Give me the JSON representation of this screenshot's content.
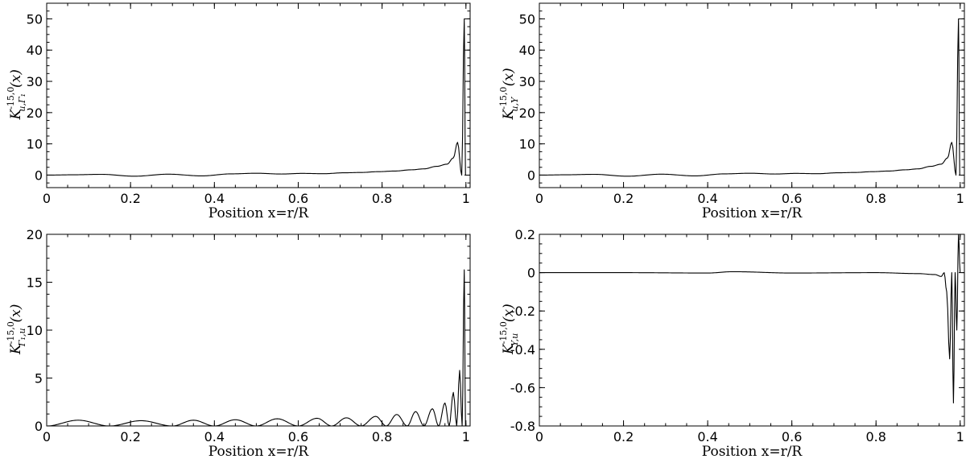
{
  "chart_data": [
    {
      "type": "line",
      "xlabel": "Position x=r/R",
      "ylabel": {
        "base": "K",
        "sup": "-15,0",
        "sub": "u,Γ₁",
        "arg": "(x)"
      },
      "xlim": [
        0,
        1.01
      ],
      "ylim": [
        -4,
        55
      ],
      "xticks": [
        0,
        0.2,
        0.4,
        0.6,
        0.8,
        1
      ],
      "xtick_labels": [
        "0",
        "0.2",
        "0.4",
        "0.6",
        "0.8",
        "1"
      ],
      "yticks": [
        0,
        10,
        20,
        30,
        40,
        50
      ],
      "ytick_labels": [
        "0",
        "10",
        "20",
        "30",
        "40",
        "50"
      ],
      "grid": false,
      "series": [
        {
          "x": [
            0.0,
            0.06,
            0.13,
            0.21,
            0.29,
            0.37,
            0.44,
            0.5,
            0.56,
            0.61,
            0.66,
            0.71,
            0.75,
            0.79,
            0.83,
            0.87,
            0.9,
            0.93,
            0.955,
            0.97,
            0.98,
            0.99,
            0.996,
            0.999
          ],
          "y": [
            0.0,
            0.1,
            0.25,
            -0.35,
            0.3,
            -0.25,
            0.4,
            0.6,
            0.35,
            0.55,
            0.45,
            0.75,
            0.85,
            1.1,
            1.3,
            1.7,
            2.0,
            2.8,
            3.5,
            5.5,
            10.5,
            0.0,
            50.0,
            0.0
          ]
        }
      ]
    },
    {
      "type": "line",
      "xlabel": "Position x=r/R",
      "ylabel": {
        "base": "K",
        "sup": "-15,0",
        "sub": "u,Y",
        "arg": "(x)"
      },
      "xlim": [
        0,
        1.01
      ],
      "ylim": [
        -4,
        55
      ],
      "xticks": [
        0,
        0.2,
        0.4,
        0.6,
        0.8,
        1
      ],
      "xtick_labels": [
        "0",
        "0.2",
        "0.4",
        "0.6",
        "0.8",
        "1"
      ],
      "yticks": [
        0,
        10,
        20,
        30,
        40,
        50
      ],
      "ytick_labels": [
        "0",
        "10",
        "20",
        "30",
        "40",
        "50"
      ],
      "grid": false,
      "series": [
        {
          "x": [
            0.0,
            0.06,
            0.13,
            0.21,
            0.29,
            0.37,
            0.44,
            0.5,
            0.56,
            0.61,
            0.66,
            0.71,
            0.75,
            0.79,
            0.83,
            0.87,
            0.9,
            0.93,
            0.955,
            0.97,
            0.98,
            0.99,
            0.996,
            0.999
          ],
          "y": [
            0.0,
            0.1,
            0.25,
            -0.35,
            0.3,
            -0.25,
            0.4,
            0.6,
            0.35,
            0.55,
            0.45,
            0.75,
            0.85,
            1.1,
            1.3,
            1.7,
            2.0,
            2.8,
            3.5,
            5.5,
            10.5,
            0.0,
            50.0,
            0.0
          ]
        }
      ]
    },
    {
      "type": "line",
      "xlabel": "Position x=r/R",
      "ylabel": {
        "base": "K",
        "sup": "-15,0",
        "sub": "Γ₁,u",
        "arg": "(x)"
      },
      "xlim": [
        0,
        1.01
      ],
      "ylim": [
        0,
        20
      ],
      "xticks": [
        0,
        0.2,
        0.4,
        0.6,
        0.8,
        1
      ],
      "xtick_labels": [
        "0",
        "0.2",
        "0.4",
        "0.6",
        "0.8",
        "1"
      ],
      "yticks": [
        0,
        5,
        10,
        15,
        20
      ],
      "ytick_labels": [
        "0",
        "5",
        "10",
        "15",
        "20"
      ],
      "grid": false,
      "series": [
        {
          "x": [
            0.0,
            0.075,
            0.15,
            0.225,
            0.3,
            0.35,
            0.4,
            0.45,
            0.5,
            0.55,
            0.6,
            0.645,
            0.68,
            0.715,
            0.75,
            0.785,
            0.81,
            0.835,
            0.86,
            0.88,
            0.9,
            0.92,
            0.935,
            0.95,
            0.96,
            0.97,
            0.978,
            0.985,
            0.991,
            0.996,
            0.999
          ],
          "y": [
            0.0,
            0.6,
            0.0,
            0.55,
            0.0,
            0.6,
            0.0,
            0.65,
            0.0,
            0.75,
            0.0,
            0.8,
            0.0,
            0.85,
            0.0,
            1.0,
            0.0,
            1.2,
            0.0,
            1.5,
            0.0,
            1.8,
            0.0,
            2.4,
            0.0,
            3.5,
            0.0,
            5.8,
            0.0,
            16.3,
            0.0
          ]
        }
      ]
    },
    {
      "type": "line",
      "xlabel": "Position x=r/R",
      "ylabel": {
        "base": "K",
        "sup": "-15,0",
        "sub": "Y,u",
        "arg": "(x)"
      },
      "xlim": [
        0,
        1.01
      ],
      "ylim": [
        -0.8,
        0.2
      ],
      "xticks": [
        0,
        0.2,
        0.4,
        0.6,
        0.8,
        1
      ],
      "xtick_labels": [
        "0",
        "0.2",
        "0.4",
        "0.6",
        "0.8",
        "1"
      ],
      "yticks": [
        -0.8,
        -0.6,
        -0.4,
        -0.2,
        0,
        0.2
      ],
      "ytick_labels": [
        "-0.8",
        "-0.6",
        "-0.4",
        "-0.2",
        "0",
        "0.2"
      ],
      "grid": false,
      "series": [
        {
          "x": [
            0.0,
            0.2,
            0.4,
            0.46,
            0.6,
            0.8,
            0.9,
            0.94,
            0.955,
            0.962,
            0.968,
            0.975,
            0.98,
            0.984,
            0.988,
            0.992,
            0.996,
            1.0
          ],
          "y": [
            0.0,
            0.0,
            -0.002,
            0.005,
            -0.002,
            0.0,
            -0.005,
            -0.01,
            -0.02,
            0.0,
            -0.1,
            -0.45,
            0.0,
            -0.68,
            0.0,
            -0.3,
            0.2,
            0.0
          ]
        }
      ]
    }
  ]
}
